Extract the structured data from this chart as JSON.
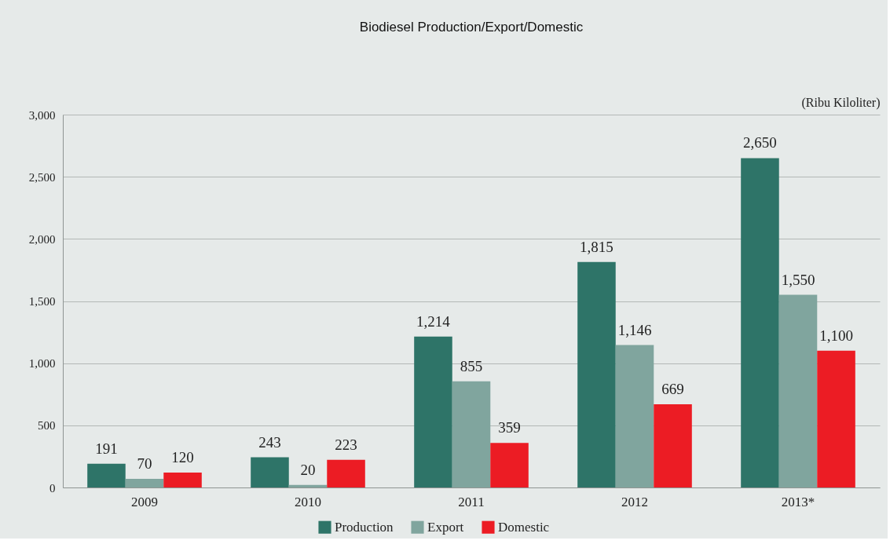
{
  "chart_data": {
    "type": "bar",
    "title": "Biodiesel Production/Export/Domestic",
    "ylabel": "(Ribu Kiloliter)",
    "categories": [
      "2009",
      "2010",
      "2011",
      "2012",
      "2013*"
    ],
    "series": [
      {
        "name": "Production",
        "color": "#2e7468",
        "values": [
          191,
          243,
          1214,
          1815,
          2650
        ],
        "value_labels": [
          "191",
          "243",
          "1,214",
          "1,815",
          "2,650"
        ]
      },
      {
        "name": "Export",
        "color": "#80a59e",
        "values": [
          70,
          20,
          855,
          1146,
          1550
        ],
        "value_labels": [
          "70",
          "20",
          "855",
          "1,146",
          "1,550"
        ]
      },
      {
        "name": "Domestic",
        "color": "#ec1c24",
        "values": [
          120,
          223,
          359,
          669,
          1100
        ],
        "value_labels": [
          "120",
          "223",
          "359",
          "669",
          "1,100"
        ]
      }
    ],
    "ylim": [
      0,
      3000
    ],
    "yticks": [
      0,
      500,
      {
        "value": 1000,
        "label": "1,000"
      },
      {
        "value": 1500,
        "label": "1,500"
      },
      {
        "value": 2000,
        "label": "2,000"
      },
      {
        "value": 2500,
        "label": "2,500"
      },
      {
        "value": 3000,
        "label": "3,000"
      }
    ],
    "grid": "y",
    "legend": "bottom"
  }
}
